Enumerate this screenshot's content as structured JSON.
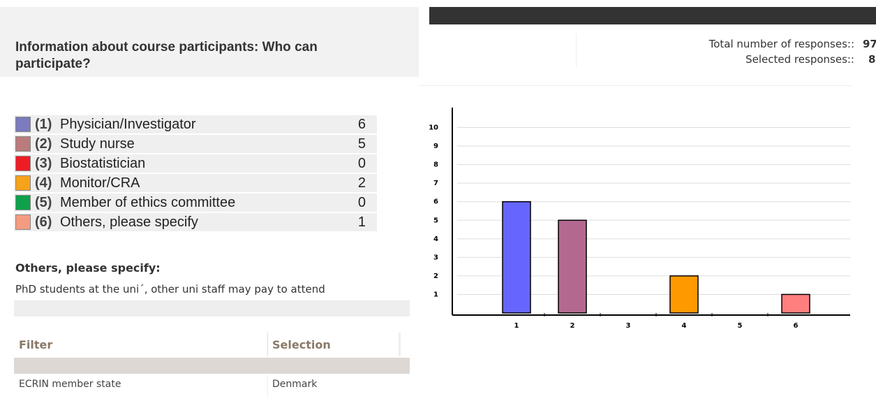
{
  "header": {
    "total_label": "Total number of responses::",
    "total": 97,
    "selected_label": "Selected responses::",
    "selected": 8
  },
  "question": {
    "title": "Information about course participants: Who can participate?"
  },
  "options": [
    {
      "number": "(1)",
      "label": "Physician/Investigator",
      "count": 6,
      "color": "#7b7bbd"
    },
    {
      "number": "(2)",
      "label": "Study nurse",
      "count": 5,
      "color": "#b97b7b"
    },
    {
      "number": "(3)",
      "label": "Biostatistician",
      "count": 0,
      "color": "#ee1c25"
    },
    {
      "number": "(4)",
      "label": "Monitor/CRA",
      "count": 2,
      "color": "#f7a21b"
    },
    {
      "number": "(5)",
      "label": "Member of ethics committee",
      "count": 0,
      "color": "#0ea04a"
    },
    {
      "number": "(6)",
      "label": "Others, please specify",
      "count": 1,
      "color": "#f59b80"
    }
  ],
  "others": {
    "heading": "Others, please specify:",
    "text": "PhD students at the uni´, other uni staff may pay to attend"
  },
  "filter": {
    "columns": [
      "Filter",
      "Selection"
    ],
    "rows": [
      [
        "ECRIN member state",
        "Denmark"
      ]
    ]
  },
  "chart_data": {
    "type": "bar",
    "categories": [
      "1",
      "2",
      "3",
      "4",
      "5",
      "6"
    ],
    "values": [
      6,
      5,
      0,
      2,
      0,
      1
    ],
    "colors": [
      "#6666ff",
      "#b3698f",
      "#ff0000",
      "#ff9900",
      "#00aa44",
      "#ff7f7f"
    ],
    "ylim": [
      0,
      11
    ],
    "yticks": [
      1,
      2,
      3,
      4,
      5,
      6,
      7,
      8,
      9,
      10
    ],
    "grid": true
  }
}
